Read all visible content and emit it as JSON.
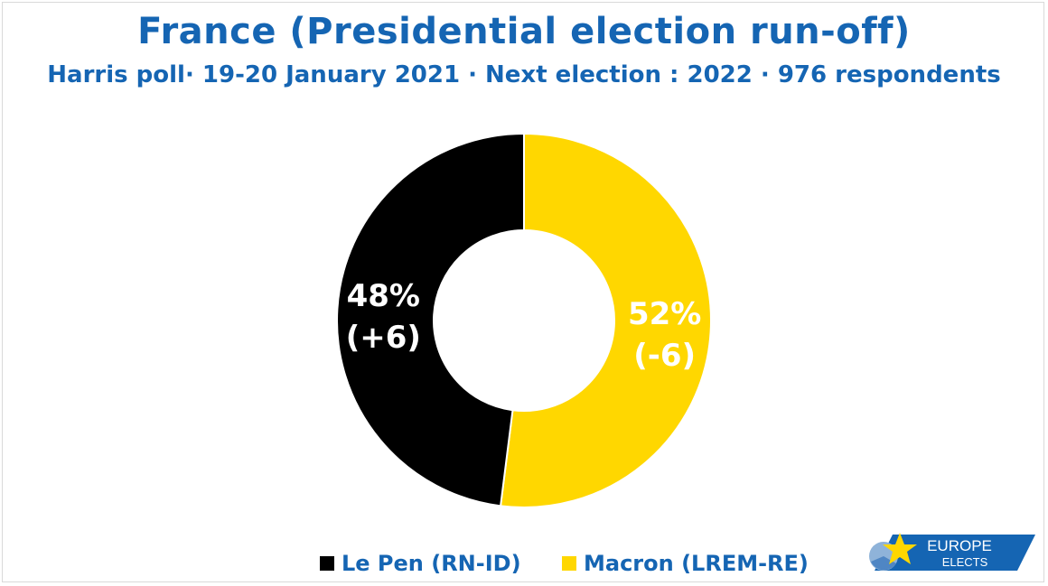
{
  "title": "France (Presidential election run-off)",
  "subtitle": "Harris poll· 19-20 January 2021 · Next election : 2022 · 976 respondents",
  "chart_data": {
    "type": "pie",
    "donut": true,
    "title": "France (Presidential election run-off)",
    "subtitle": "Harris poll· 19-20 January 2021 · Next election : 2022 · 976 respondents",
    "slices": [
      {
        "name": "Macron (LREM-RE)",
        "value": 52,
        "label": "52%",
        "change": "(-6)",
        "color": "#ffd700"
      },
      {
        "name": "Le Pen (RN-ID)",
        "value": 48,
        "label": "48%",
        "change": "(+6)",
        "color": "#000000"
      }
    ],
    "legend": [
      {
        "label": "Le Pen (RN-ID)",
        "color": "#000000"
      },
      {
        "label": "Macron (LREM-RE)",
        "color": "#ffd700"
      }
    ],
    "legend_position": "bottom"
  },
  "logo": {
    "line1": "EUROPE",
    "line2": "ELECTS",
    "colors": {
      "banner": "#1565b3",
      "star": "#ffd700"
    }
  },
  "colors": {
    "title": "#1565b3"
  }
}
